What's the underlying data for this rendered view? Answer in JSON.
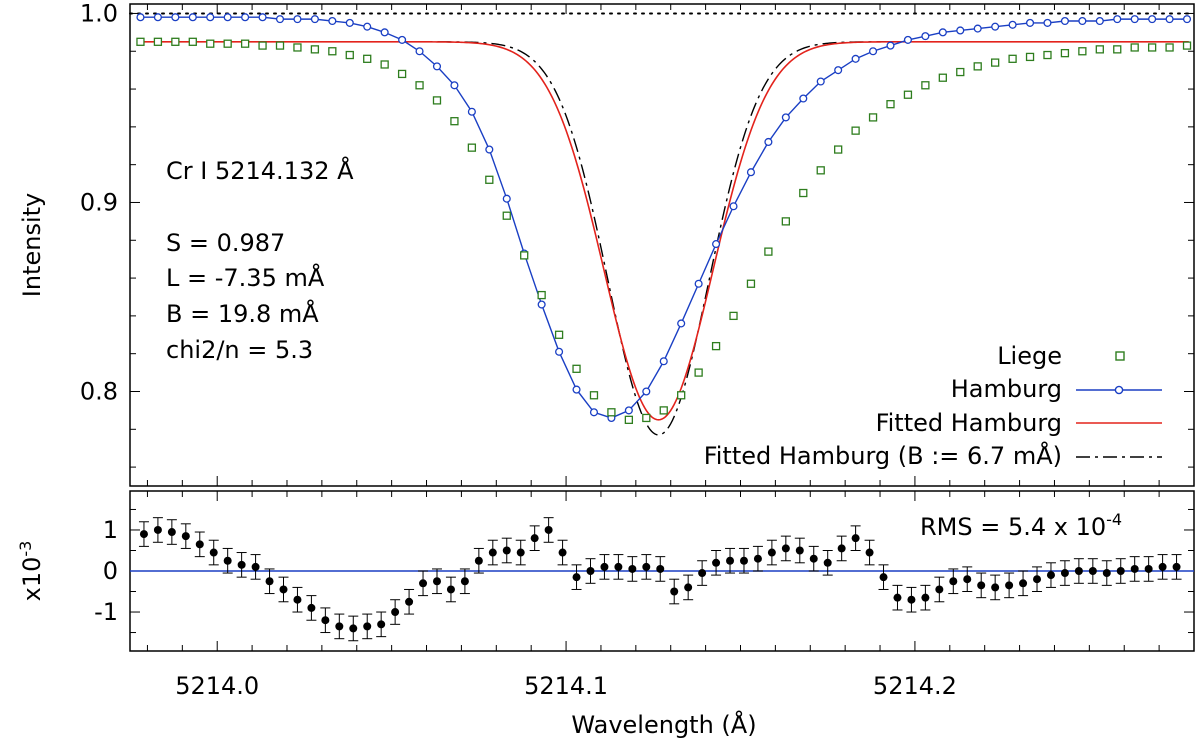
{
  "chart_data": [
    {
      "type": "line",
      "panel": "main",
      "ylabel": "Intensity",
      "xlim": [
        5213.975,
        5214.28
      ],
      "ylim": [
        0.75,
        1.005
      ],
      "yticks": [
        0.8,
        0.9,
        1.0
      ],
      "ytick_labels": [
        "0.8",
        "0.9",
        "1.0"
      ],
      "reference_line": {
        "y": 1.0,
        "style": "dotted",
        "color": "#000000"
      },
      "annotations": {
        "line_id": "Cr I 5214.132 Å",
        "s": "S = 0.987",
        "l": "L = -7.35 mÅ",
        "b": "B = 19.8 mÅ",
        "chi": "chi2/n = 5.3"
      },
      "legend_position": "bottom-right",
      "series": [
        {
          "name": "Liege",
          "marker": "open-square",
          "line": "none",
          "color": "#2e7d1e",
          "x": [
            5213.978,
            5213.983,
            5213.988,
            5213.993,
            5213.998,
            5214.003,
            5214.008,
            5214.013,
            5214.018,
            5214.023,
            5214.028,
            5214.033,
            5214.038,
            5214.043,
            5214.048,
            5214.053,
            5214.058,
            5214.063,
            5214.068,
            5214.073,
            5214.078,
            5214.083,
            5214.088,
            5214.093,
            5214.098,
            5214.103,
            5214.108,
            5214.113,
            5214.118,
            5214.123,
            5214.128,
            5214.133,
            5214.138,
            5214.143,
            5214.148,
            5214.153,
            5214.158,
            5214.163,
            5214.168,
            5214.173,
            5214.178,
            5214.183,
            5214.188,
            5214.193,
            5214.198,
            5214.203,
            5214.208,
            5214.213,
            5214.218,
            5214.223,
            5214.228,
            5214.233,
            5214.238,
            5214.243,
            5214.248,
            5214.253,
            5214.258,
            5214.263,
            5214.268,
            5214.273,
            5214.278
          ],
          "y": [
            0.985,
            0.985,
            0.985,
            0.985,
            0.984,
            0.984,
            0.984,
            0.983,
            0.983,
            0.982,
            0.981,
            0.98,
            0.978,
            0.976,
            0.973,
            0.968,
            0.962,
            0.954,
            0.943,
            0.929,
            0.912,
            0.893,
            0.872,
            0.851,
            0.83,
            0.812,
            0.798,
            0.789,
            0.785,
            0.786,
            0.79,
            0.798,
            0.81,
            0.824,
            0.84,
            0.857,
            0.874,
            0.89,
            0.905,
            0.917,
            0.928,
            0.938,
            0.945,
            0.952,
            0.957,
            0.962,
            0.966,
            0.969,
            0.972,
            0.974,
            0.976,
            0.977,
            0.978,
            0.979,
            0.98,
            0.981,
            0.981,
            0.982,
            0.982,
            0.982,
            0.983
          ]
        },
        {
          "name": "Hamburg",
          "marker": "open-circle",
          "line": "solid",
          "color": "#1a3fc4",
          "x": [
            5213.978,
            5213.983,
            5213.988,
            5213.993,
            5213.998,
            5214.003,
            5214.008,
            5214.013,
            5214.018,
            5214.023,
            5214.028,
            5214.033,
            5214.038,
            5214.043,
            5214.048,
            5214.053,
            5214.058,
            5214.063,
            5214.068,
            5214.073,
            5214.078,
            5214.083,
            5214.088,
            5214.093,
            5214.098,
            5214.103,
            5214.108,
            5214.113,
            5214.118,
            5214.123,
            5214.128,
            5214.133,
            5214.138,
            5214.143,
            5214.148,
            5214.153,
            5214.158,
            5214.163,
            5214.168,
            5214.173,
            5214.178,
            5214.183,
            5214.188,
            5214.193,
            5214.198,
            5214.203,
            5214.208,
            5214.213,
            5214.218,
            5214.223,
            5214.228,
            5214.233,
            5214.238,
            5214.243,
            5214.248,
            5214.253,
            5214.258,
            5214.263,
            5214.268,
            5214.273,
            5214.278
          ],
          "y": [
            0.998,
            0.998,
            0.998,
            0.998,
            0.998,
            0.998,
            0.998,
            0.998,
            0.997,
            0.997,
            0.997,
            0.996,
            0.995,
            0.993,
            0.99,
            0.986,
            0.98,
            0.972,
            0.962,
            0.948,
            0.928,
            0.902,
            0.873,
            0.846,
            0.821,
            0.801,
            0.789,
            0.786,
            0.79,
            0.8,
            0.816,
            0.836,
            0.857,
            0.878,
            0.898,
            0.916,
            0.932,
            0.945,
            0.955,
            0.964,
            0.97,
            0.976,
            0.98,
            0.983,
            0.986,
            0.988,
            0.99,
            0.991,
            0.992,
            0.993,
            0.994,
            0.995,
            0.995,
            0.996,
            0.996,
            0.996,
            0.997,
            0.997,
            0.997,
            0.997,
            0.997
          ]
        },
        {
          "name": "Fitted Hamburg",
          "marker": "none",
          "line": "solid",
          "color": "#e3231c",
          "center": 5214.1265,
          "depth": 0.2,
          "continuum": 0.985,
          "width": 0.022
        },
        {
          "name": "Fitted Hamburg (B := 6.7 mÅ)",
          "marker": "none",
          "line": "dash-dot",
          "color": "#000000",
          "center": 5214.1265,
          "depth": 0.208,
          "continuum": 0.985,
          "width": 0.0205
        }
      ]
    },
    {
      "type": "scatter",
      "panel": "residuals",
      "ylabel": "x10",
      "ylabel_exponent": "-3",
      "xlabel": "Wavelength (Å)",
      "xlim": [
        5213.975,
        5214.28
      ],
      "ylim": [
        -1.95,
        1.95
      ],
      "yticks": [
        -1,
        0,
        1
      ],
      "ytick_labels": [
        "-1",
        "0",
        "1"
      ],
      "xticks": [
        5214.0,
        5214.1,
        5214.2
      ],
      "xtick_labels": [
        "5214.0",
        "5214.1",
        "5214.2"
      ],
      "zero_line_color": "#1a3fc4",
      "annotation_rms": "RMS = 5.4 x 10",
      "annotation_rms_exponent": "-4",
      "errorbar": 0.3,
      "x": [
        5213.979,
        5213.983,
        5213.987,
        5213.991,
        5213.995,
        5213.999,
        5214.003,
        5214.007,
        5214.011,
        5214.015,
        5214.019,
        5214.023,
        5214.027,
        5214.031,
        5214.035,
        5214.039,
        5214.043,
        5214.047,
        5214.051,
        5214.055,
        5214.059,
        5214.063,
        5214.067,
        5214.071,
        5214.075,
        5214.079,
        5214.083,
        5214.087,
        5214.091,
        5214.095,
        5214.099,
        5214.103,
        5214.107,
        5214.111,
        5214.115,
        5214.119,
        5214.123,
        5214.127,
        5214.131,
        5214.135,
        5214.139,
        5214.143,
        5214.147,
        5214.151,
        5214.155,
        5214.159,
        5214.163,
        5214.167,
        5214.171,
        5214.175,
        5214.179,
        5214.183,
        5214.187,
        5214.191,
        5214.195,
        5214.199,
        5214.203,
        5214.207,
        5214.211,
        5214.215,
        5214.219,
        5214.223,
        5214.227,
        5214.231,
        5214.235,
        5214.239,
        5214.243,
        5214.247,
        5214.251,
        5214.255,
        5214.259,
        5214.263,
        5214.267,
        5214.271,
        5214.275
      ],
      "y": [
        0.9,
        1.0,
        0.95,
        0.85,
        0.65,
        0.45,
        0.25,
        0.15,
        0.1,
        -0.25,
        -0.45,
        -0.7,
        -0.9,
        -1.2,
        -1.35,
        -1.4,
        -1.35,
        -1.3,
        -1.0,
        -0.75,
        -0.3,
        -0.25,
        -0.45,
        -0.25,
        0.25,
        0.45,
        0.5,
        0.45,
        0.8,
        1.0,
        0.45,
        -0.15,
        0.0,
        0.1,
        0.1,
        0.05,
        0.1,
        0.05,
        -0.5,
        -0.4,
        -0.05,
        0.2,
        0.25,
        0.25,
        0.3,
        0.45,
        0.55,
        0.5,
        0.3,
        0.2,
        0.55,
        0.8,
        0.45,
        -0.15,
        -0.65,
        -0.7,
        -0.65,
        -0.45,
        -0.25,
        -0.2,
        -0.35,
        -0.4,
        -0.35,
        -0.3,
        -0.2,
        -0.1,
        -0.05,
        0.0,
        0.0,
        -0.05,
        0.0,
        0.05,
        0.05,
        0.1,
        0.1
      ]
    }
  ]
}
